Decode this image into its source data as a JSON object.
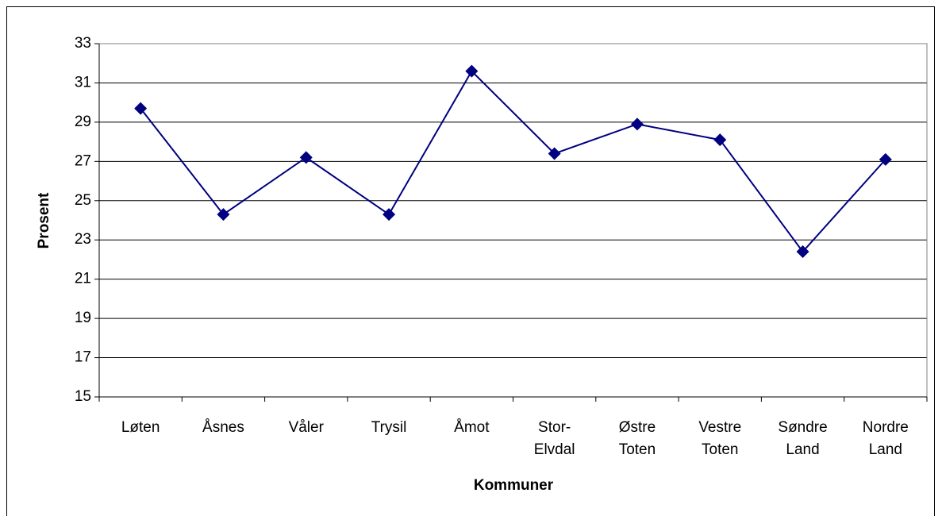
{
  "chart_data": {
    "type": "line",
    "x_label": "Kommuner",
    "y_label": "Prosent",
    "categories": [
      "Løten",
      "Åsnes",
      "Våler",
      "Trysil",
      "Åmot",
      "Stor-\nElvdal",
      "Østre\nToten",
      "Vestre\nToten",
      "Søndre\nLand",
      "Nordre\nLand"
    ],
    "values": [
      29.7,
      24.3,
      27.2,
      24.3,
      31.6,
      27.4,
      28.9,
      28.1,
      22.4,
      27.1
    ],
    "color": "#000080",
    "ylim": [
      15,
      33
    ],
    "yticks": [
      15,
      17,
      19,
      21,
      23,
      25,
      27,
      29,
      31,
      33
    ],
    "grid": true
  }
}
